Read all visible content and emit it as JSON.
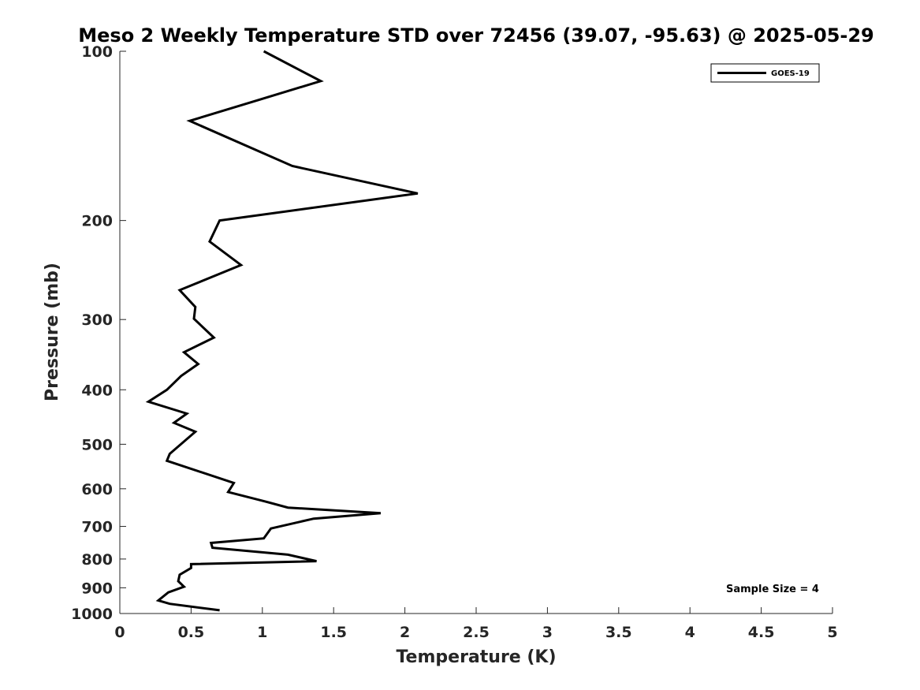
{
  "chart_data": {
    "type": "line",
    "title": "Meso 2 Weekly Temperature STD over 72456 (39.07, -95.63) @ 2025-05-29",
    "xlabel": "Temperature (K)",
    "ylabel": "Pressure (mb)",
    "xlim": [
      0,
      5
    ],
    "ylim": [
      1000,
      100
    ],
    "yscale": "log",
    "xticks": [
      0,
      0.5,
      1,
      1.5,
      2,
      2.5,
      3,
      3.5,
      4,
      4.5,
      5
    ],
    "xtick_labels": [
      "0",
      "0.5",
      "1",
      "1.5",
      "2",
      "2.5",
      "3",
      "3.5",
      "4",
      "4.5",
      "5"
    ],
    "yticks": [
      100,
      200,
      300,
      400,
      500,
      600,
      700,
      800,
      900,
      1000
    ],
    "ytick_labels": [
      "100",
      "200",
      "300",
      "400",
      "500",
      "600",
      "700",
      "800",
      "900",
      "1000"
    ],
    "grid": false,
    "legend_position": "top-right",
    "annotation": "Sample Size = 4",
    "series": [
      {
        "name": "GOES-19",
        "color": "#000000",
        "x": [
          1.01,
          1.41,
          0.49,
          1.21,
          2.09,
          0.7,
          0.63,
          0.85,
          0.42,
          0.53,
          0.52,
          0.66,
          0.45,
          0.55,
          0.43,
          0.33,
          0.2,
          0.47,
          0.38,
          0.53,
          0.35,
          0.33,
          0.8,
          0.76,
          1.02,
          1.18,
          1.83,
          1.36,
          1.06,
          1.01,
          0.64,
          0.65,
          1.18,
          1.38,
          0.5,
          0.5,
          0.42,
          0.41,
          0.45,
          0.34,
          0.27,
          0.35,
          0.7
        ],
        "y": [
          100,
          113,
          133,
          160,
          179,
          200,
          218,
          240,
          266,
          285,
          299,
          323,
          343,
          360,
          378,
          400,
          420,
          441,
          458,
          475,
          520,
          535,
          586,
          608,
          632,
          648,
          663,
          678,
          706,
          735,
          749,
          764,
          786,
          807,
          817,
          830,
          853,
          876,
          896,
          917,
          948,
          961,
          987
        ]
      }
    ]
  }
}
